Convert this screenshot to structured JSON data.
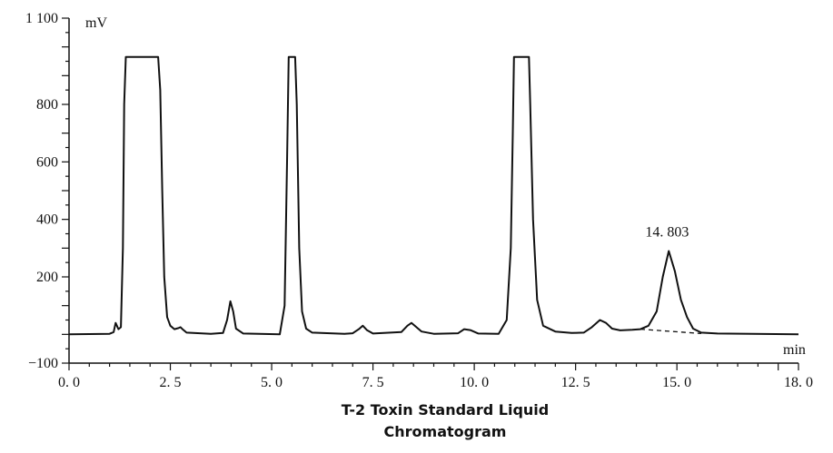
{
  "chart_data": {
    "type": "line",
    "title": "T-2 Toxin Standard Liquid Chromatogram",
    "xlabel": "min",
    "ylabel": "mV",
    "xlim": [
      0,
      18
    ],
    "ylim": [
      -100,
      1100
    ],
    "x_ticks": [
      {
        "value": 0,
        "label": "0. 0"
      },
      {
        "value": 2.5,
        "label": "2. 5"
      },
      {
        "value": 5,
        "label": "5. 0"
      },
      {
        "value": 7.5,
        "label": "7. 5"
      },
      {
        "value": 10,
        "label": "10. 0"
      },
      {
        "value": 12.5,
        "label": "12. 5"
      },
      {
        "value": 15,
        "label": "15. 0"
      },
      {
        "value": 18,
        "label": "18. 0"
      }
    ],
    "y_ticks": [
      {
        "value": -100,
        "label": "−100"
      },
      {
        "value": 200,
        "label": "200"
      },
      {
        "value": 400,
        "label": "400"
      },
      {
        "value": 600,
        "label": "600"
      },
      {
        "value": 800,
        "label": "800"
      },
      {
        "value": 1100,
        "label": "1 100"
      }
    ],
    "annotations": [
      {
        "x": 14.803,
        "y": 290,
        "text": "14. 803"
      }
    ],
    "series": [
      {
        "values": [
          [
            0.0,
            0
          ],
          [
            1.0,
            2
          ],
          [
            1.1,
            8
          ],
          [
            1.15,
            40
          ],
          [
            1.22,
            18
          ],
          [
            1.28,
            25
          ],
          [
            1.33,
            300
          ],
          [
            1.36,
            800
          ],
          [
            1.4,
            965
          ],
          [
            2.2,
            965
          ],
          [
            2.25,
            850
          ],
          [
            2.3,
            500
          ],
          [
            2.35,
            200
          ],
          [
            2.42,
            60
          ],
          [
            2.5,
            30
          ],
          [
            2.6,
            18
          ],
          [
            2.7,
            22
          ],
          [
            2.75,
            25
          ],
          [
            2.8,
            18
          ],
          [
            2.9,
            6
          ],
          [
            3.5,
            2
          ],
          [
            3.8,
            5
          ],
          [
            3.9,
            50
          ],
          [
            3.98,
            115
          ],
          [
            4.05,
            80
          ],
          [
            4.12,
            20
          ],
          [
            4.3,
            3
          ],
          [
            5.2,
            0
          ],
          [
            5.32,
            100
          ],
          [
            5.38,
            600
          ],
          [
            5.42,
            965
          ],
          [
            5.58,
            965
          ],
          [
            5.62,
            800
          ],
          [
            5.68,
            300
          ],
          [
            5.75,
            80
          ],
          [
            5.85,
            20
          ],
          [
            6.0,
            6
          ],
          [
            6.8,
            2
          ],
          [
            7.0,
            4
          ],
          [
            7.15,
            18
          ],
          [
            7.25,
            30
          ],
          [
            7.35,
            15
          ],
          [
            7.5,
            3
          ],
          [
            8.2,
            8
          ],
          [
            8.35,
            30
          ],
          [
            8.45,
            40
          ],
          [
            8.55,
            28
          ],
          [
            8.7,
            10
          ],
          [
            9.0,
            2
          ],
          [
            9.6,
            4
          ],
          [
            9.75,
            18
          ],
          [
            9.9,
            15
          ],
          [
            10.1,
            3
          ],
          [
            10.6,
            2
          ],
          [
            10.8,
            50
          ],
          [
            10.9,
            300
          ],
          [
            10.95,
            700
          ],
          [
            10.98,
            965
          ],
          [
            11.35,
            965
          ],
          [
            11.38,
            800
          ],
          [
            11.45,
            400
          ],
          [
            11.55,
            120
          ],
          [
            11.7,
            30
          ],
          [
            12.0,
            10
          ],
          [
            12.4,
            5
          ],
          [
            12.7,
            6
          ],
          [
            12.9,
            25
          ],
          [
            13.1,
            50
          ],
          [
            13.25,
            40
          ],
          [
            13.4,
            20
          ],
          [
            13.6,
            14
          ],
          [
            13.9,
            16
          ],
          [
            14.1,
            18
          ],
          [
            14.3,
            30
          ],
          [
            14.5,
            80
          ],
          [
            14.65,
            200
          ],
          [
            14.8,
            290
          ],
          [
            14.95,
            220
          ],
          [
            15.1,
            120
          ],
          [
            15.25,
            60
          ],
          [
            15.4,
            20
          ],
          [
            15.6,
            6
          ],
          [
            16.0,
            3
          ],
          [
            18.0,
            0
          ]
        ]
      }
    ],
    "baseline_segment": [
      [
        14.1,
        18
      ],
      [
        15.6,
        3
      ]
    ],
    "grid": false,
    "colors": {
      "line": "#111111",
      "axis": "#111111"
    }
  }
}
